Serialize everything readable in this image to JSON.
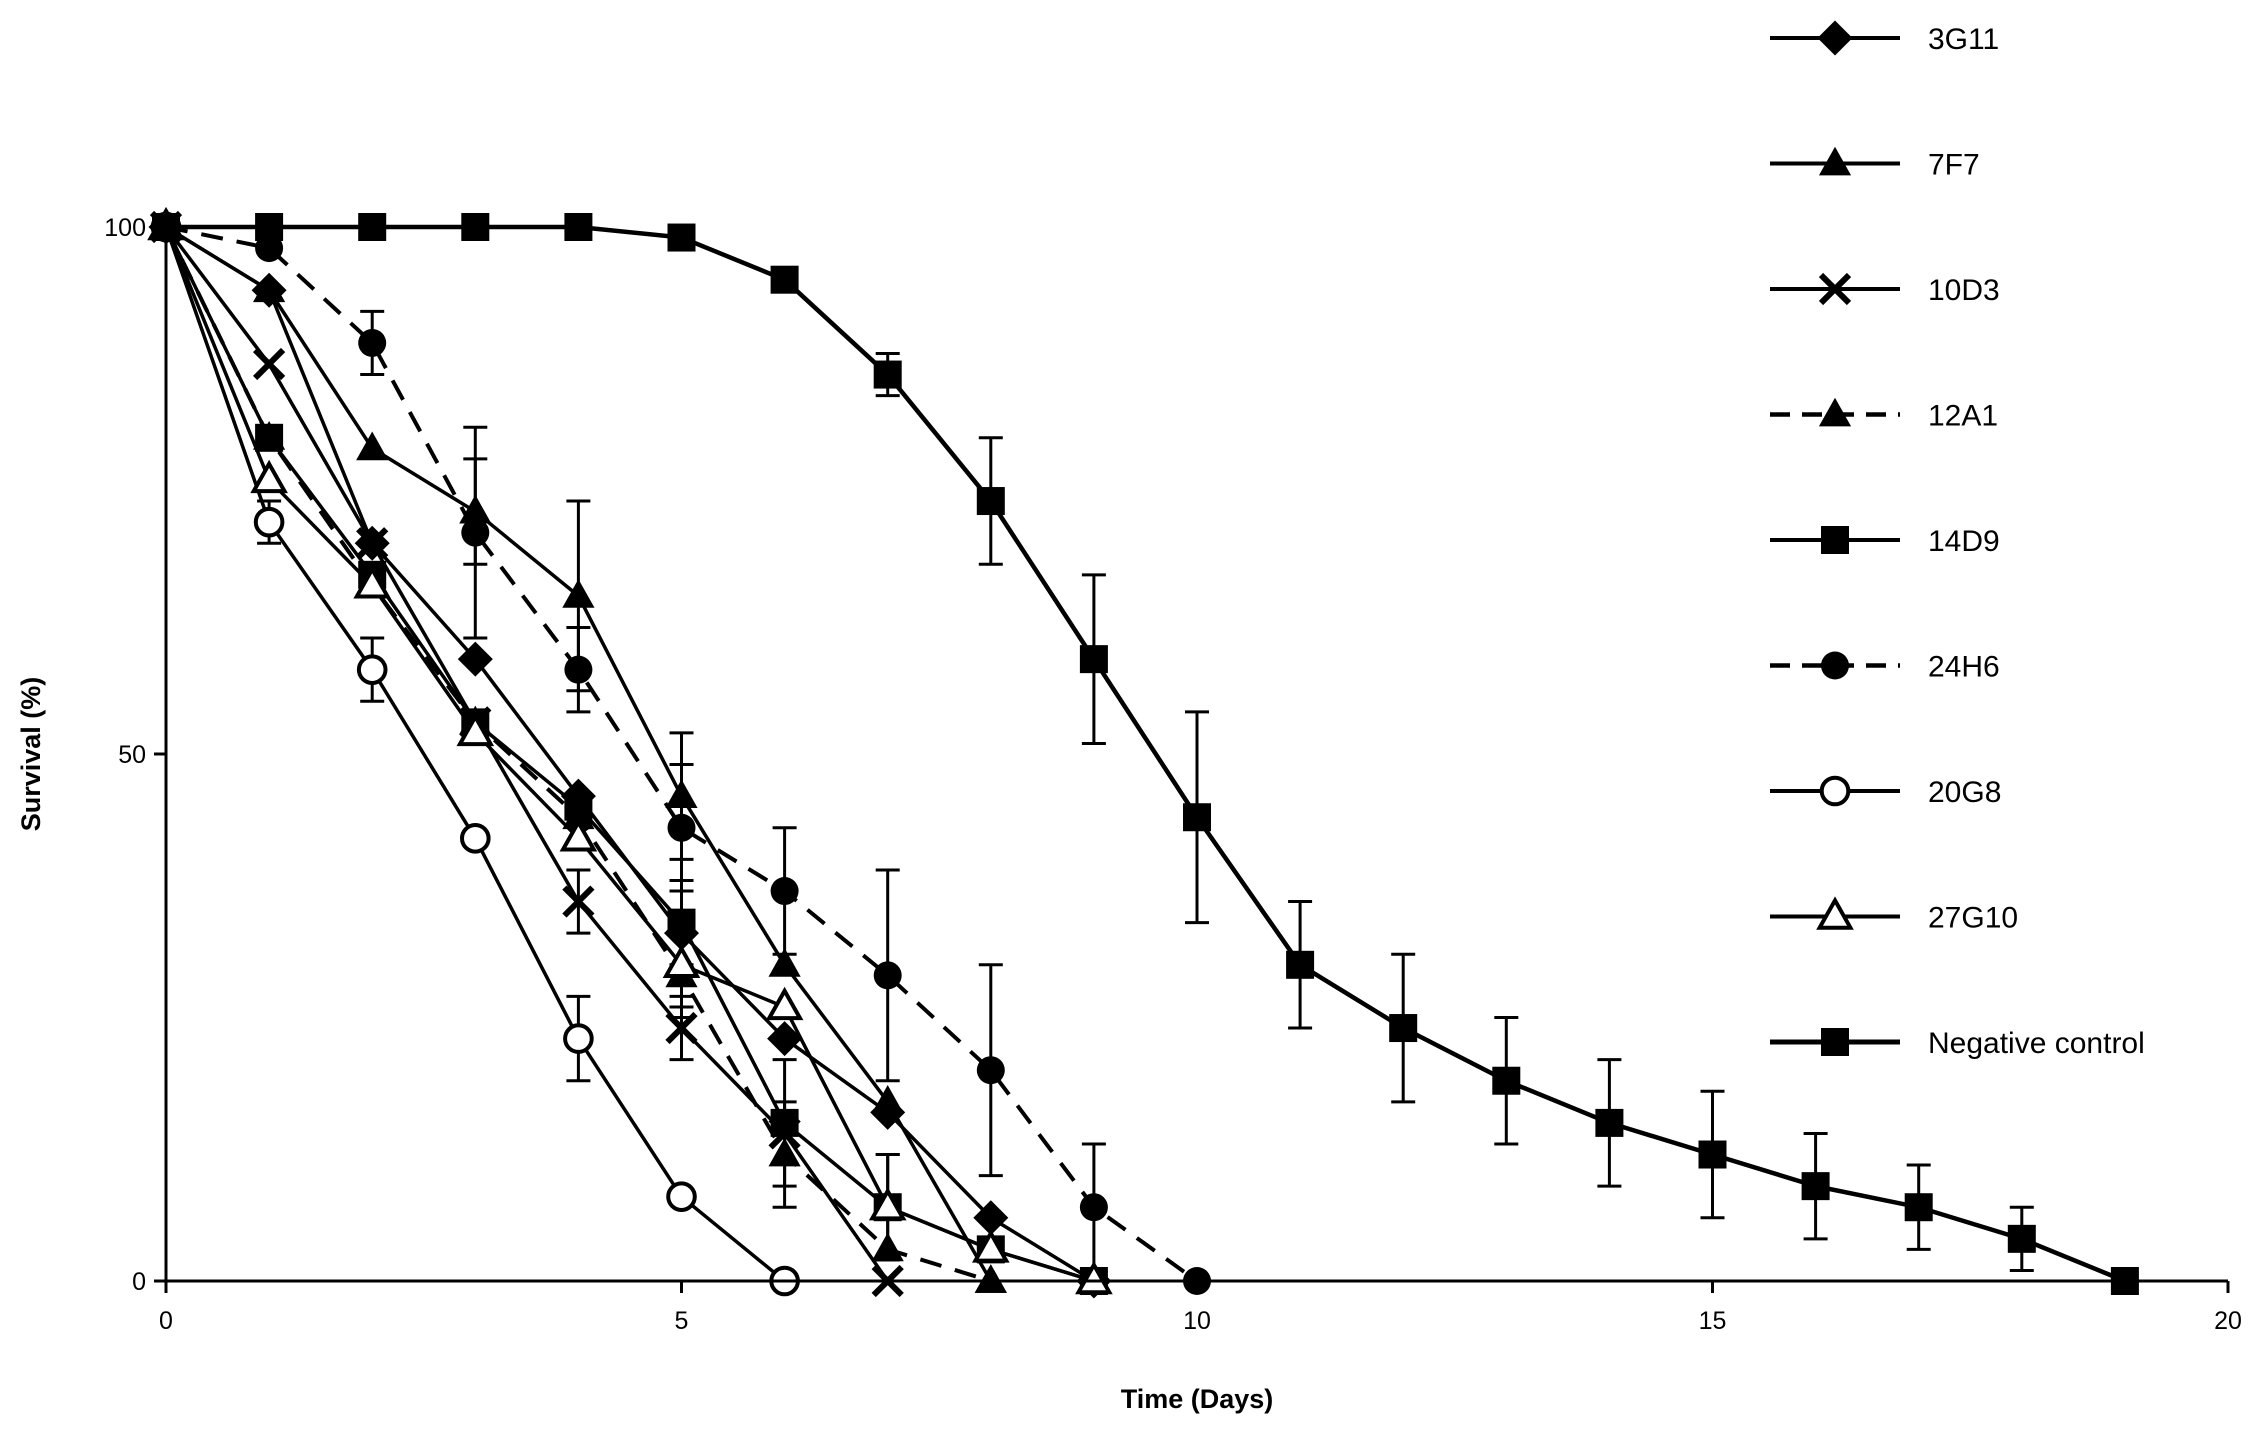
{
  "chart_data": {
    "type": "line",
    "title": "",
    "xlabel": "Time (Days)",
    "ylabel": "Survival (%)",
    "xlim": [
      0,
      20
    ],
    "ylim": [
      0,
      100
    ],
    "xticks": [
      0,
      5,
      10,
      15,
      20
    ],
    "yticks": [
      0,
      50,
      100
    ],
    "grid": false,
    "legend_position": "right",
    "series": [
      {
        "name": "3G11",
        "marker": "diamond",
        "line": "solid",
        "x": [
          0,
          1,
          2,
          3,
          4,
          5,
          6,
          7,
          8,
          9
        ],
        "y": [
          100,
          94,
          70,
          59,
          46,
          33,
          23,
          16,
          6,
          0
        ],
        "err": [
          0,
          0,
          0,
          0,
          0,
          0,
          0,
          0,
          0,
          0
        ]
      },
      {
        "name": "7F7",
        "marker": "triangle-filled",
        "line": "solid",
        "x": [
          0,
          1,
          2,
          3,
          4,
          5,
          6,
          7,
          8
        ],
        "y": [
          100,
          94,
          79,
          73,
          65,
          46,
          30,
          17,
          0
        ],
        "err": [
          0,
          0,
          0,
          5,
          9,
          6,
          0,
          0,
          0
        ]
      },
      {
        "name": "10D3",
        "marker": "x",
        "line": "solid",
        "x": [
          0,
          1,
          2,
          3,
          4,
          5,
          6,
          7
        ],
        "y": [
          100,
          87,
          70,
          53,
          36,
          24,
          14,
          0
        ],
        "err": [
          0,
          0,
          0,
          0,
          3,
          3,
          0,
          0
        ]
      },
      {
        "name": "12A1",
        "marker": "triangle-filled",
        "line": "dashed",
        "x": [
          0,
          1,
          2,
          3,
          4,
          5,
          6,
          7,
          8
        ],
        "y": [
          100,
          80,
          66,
          53,
          44,
          29,
          12,
          3,
          0
        ],
        "err": [
          0,
          0,
          0,
          0,
          0,
          4,
          5,
          0,
          0
        ]
      },
      {
        "name": "14D9",
        "marker": "square",
        "line": "solid",
        "x": [
          0,
          1,
          2,
          3,
          4,
          5,
          6,
          7,
          8,
          9
        ],
        "y": [
          100,
          80,
          67,
          53,
          45,
          34,
          15,
          7,
          3,
          0
        ],
        "err": [
          0,
          0,
          0,
          0,
          0,
          4,
          6,
          5,
          0,
          0
        ]
      },
      {
        "name": "24H6",
        "marker": "circle-filled",
        "line": "dashed",
        "x": [
          0,
          1,
          2,
          3,
          4,
          5,
          6,
          7,
          8,
          9,
          10
        ],
        "y": [
          100,
          98,
          89,
          71,
          58,
          43,
          37,
          29,
          20,
          7,
          0
        ],
        "err": [
          0,
          0,
          3,
          10,
          4,
          6,
          6,
          10,
          10,
          6,
          0
        ]
      },
      {
        "name": "20G8",
        "marker": "circle-open",
        "line": "solid",
        "x": [
          0,
          1,
          2,
          3,
          4,
          5,
          6
        ],
        "y": [
          100,
          72,
          58,
          42,
          23,
          8,
          0
        ],
        "err": [
          0,
          2,
          3,
          0,
          4,
          0,
          0
        ]
      },
      {
        "name": "27G10",
        "marker": "triangle-open",
        "line": "solid",
        "x": [
          0,
          1,
          2,
          3,
          4,
          5,
          6,
          7,
          8,
          9
        ],
        "y": [
          100,
          76,
          66,
          52,
          42,
          30,
          26,
          7,
          3,
          0
        ],
        "err": [
          0,
          0,
          0,
          0,
          0,
          4,
          0,
          5,
          0,
          0
        ]
      },
      {
        "name": "Negative control",
        "marker": "square",
        "line": "solid",
        "x": [
          0,
          1,
          2,
          3,
          4,
          5,
          6,
          7,
          8,
          9,
          10,
          11,
          12,
          13,
          14,
          15,
          16,
          17,
          18,
          19
        ],
        "y": [
          100,
          100,
          100,
          100,
          100,
          99,
          95,
          86,
          74,
          59,
          44,
          30,
          24,
          19,
          15,
          12,
          9,
          7,
          4,
          0
        ],
        "err": [
          0,
          0,
          0,
          0,
          0,
          0,
          0,
          2,
          6,
          8,
          10,
          6,
          7,
          6,
          6,
          6,
          5,
          4,
          3,
          0
        ]
      }
    ]
  }
}
